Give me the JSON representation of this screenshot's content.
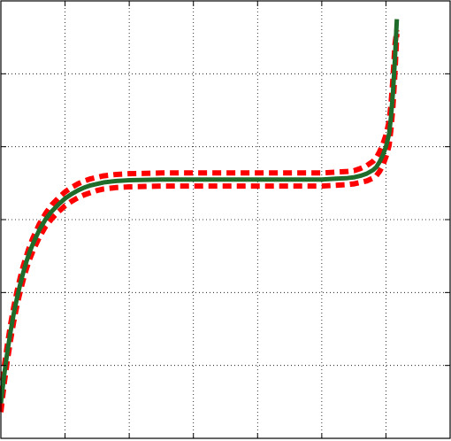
{
  "chart_data": {
    "type": "line",
    "title": "",
    "xlabel": "",
    "ylabel": "",
    "xlim": [
      0,
      7
    ],
    "ylim": [
      0,
      6
    ],
    "grid": true,
    "grid_style": "dotted",
    "tick_labels_visible": false,
    "series": [
      {
        "style": "solid",
        "color": "#1f6b2a",
        "x": [
          0.0,
          0.05,
          0.1,
          0.15,
          0.2,
          0.25,
          0.3,
          0.35,
          0.4,
          0.45,
          0.5,
          0.6,
          0.7,
          0.8,
          0.9,
          1.0,
          1.1,
          1.2,
          1.3,
          1.4,
          1.5,
          1.6,
          1.8,
          2.0,
          2.5,
          3.0,
          3.5,
          4.0,
          4.5,
          5.0,
          5.2,
          5.4,
          5.5,
          5.6,
          5.7,
          5.8,
          5.85,
          5.9,
          5.95,
          6.0,
          6.05,
          6.08,
          6.11,
          6.14,
          6.17
        ],
        "y": [
          0.48,
          0.86,
          1.18,
          1.46,
          1.71,
          1.92,
          2.11,
          2.28,
          2.43,
          2.56,
          2.67,
          2.86,
          3.01,
          3.12,
          3.21,
          3.29,
          3.35,
          3.4,
          3.44,
          3.47,
          3.49,
          3.51,
          3.53,
          3.54,
          3.55,
          3.55,
          3.55,
          3.55,
          3.55,
          3.55,
          3.56,
          3.57,
          3.58,
          3.6,
          3.63,
          3.68,
          3.72,
          3.79,
          3.88,
          4.0,
          4.18,
          4.42,
          4.75,
          5.2,
          5.75
        ]
      },
      {
        "style": "dashed",
        "color": "#ff0000",
        "x": [
          0.0,
          0.05,
          0.1,
          0.15,
          0.2,
          0.25,
          0.3,
          0.35,
          0.4,
          0.45,
          0.5,
          0.6,
          0.7,
          0.8,
          0.9,
          1.0,
          1.1,
          1.2,
          1.3,
          1.4,
          1.5,
          1.6,
          1.8,
          2.0,
          2.5,
          3.0,
          3.5,
          4.0,
          4.5,
          5.0,
          5.2,
          5.4,
          5.5,
          5.6,
          5.7,
          5.8,
          5.85,
          5.9,
          5.95,
          6.0,
          6.05,
          6.08,
          6.11,
          6.14,
          6.17
        ],
        "y": [
          0.6,
          0.97,
          1.28,
          1.56,
          1.8,
          2.01,
          2.2,
          2.37,
          2.51,
          2.64,
          2.75,
          2.94,
          3.09,
          3.21,
          3.3,
          3.38,
          3.44,
          3.49,
          3.53,
          3.56,
          3.58,
          3.6,
          3.62,
          3.63,
          3.64,
          3.64,
          3.64,
          3.64,
          3.64,
          3.64,
          3.65,
          3.66,
          3.67,
          3.7,
          3.74,
          3.8,
          3.85,
          3.93,
          4.03,
          4.16,
          4.35,
          4.6,
          4.95,
          5.4,
          5.6
        ]
      },
      {
        "style": "dashed",
        "color": "#ff0000",
        "x": [
          0.0,
          0.05,
          0.1,
          0.15,
          0.2,
          0.25,
          0.3,
          0.35,
          0.4,
          0.45,
          0.5,
          0.6,
          0.7,
          0.8,
          0.9,
          1.0,
          1.1,
          1.2,
          1.3,
          1.4,
          1.5,
          1.6,
          1.8,
          2.0,
          2.5,
          3.0,
          3.5,
          4.0,
          4.5,
          5.0,
          5.2,
          5.4,
          5.5,
          5.6,
          5.7,
          5.8,
          5.85,
          5.9,
          5.95,
          6.0,
          6.05,
          6.08,
          6.11,
          6.14,
          6.17
        ],
        "y": [
          0.36,
          0.74,
          1.06,
          1.34,
          1.6,
          1.82,
          2.01,
          2.18,
          2.33,
          2.46,
          2.57,
          2.76,
          2.91,
          3.02,
          3.11,
          3.19,
          3.25,
          3.3,
          3.34,
          3.37,
          3.4,
          3.42,
          3.44,
          3.45,
          3.46,
          3.46,
          3.46,
          3.46,
          3.46,
          3.46,
          3.47,
          3.48,
          3.49,
          3.51,
          3.53,
          3.57,
          3.6,
          3.66,
          3.74,
          3.86,
          4.02,
          4.25,
          4.56,
          5.0,
          5.55
        ]
      }
    ]
  }
}
